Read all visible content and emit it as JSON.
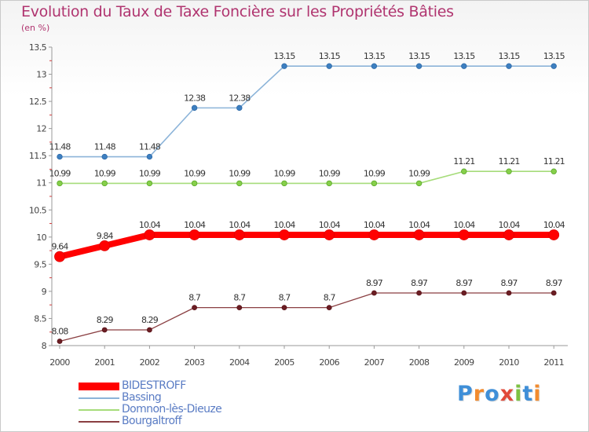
{
  "header": {
    "title": "Evolution du Taux de Taxe Foncière sur les Propriétés Bâties",
    "subtitle": "(en %)"
  },
  "chart_data": {
    "type": "line",
    "title": "Evolution du Taux de Taxe Foncière sur les Propriétés Bâties",
    "subtitle": "(en %)",
    "xlabel": "",
    "ylabel": "",
    "ylim": [
      8,
      13.5
    ],
    "yticks": [
      "8",
      "8.5",
      "9",
      "9.5",
      "10",
      "10.5",
      "11",
      "11.5",
      "12",
      "12.5",
      "13",
      "13.5"
    ],
    "x": [
      "2000",
      "2001",
      "2002",
      "2003",
      "2004",
      "2005",
      "2006",
      "2007",
      "2008",
      "2009",
      "2010",
      "2011"
    ],
    "grid": false,
    "legend_position": "bottom-left",
    "series": [
      {
        "name": "BIDESTROFF",
        "color": "#ff0000",
        "values": [
          9.64,
          9.84,
          10.04,
          10.04,
          10.04,
          10.04,
          10.04,
          10.04,
          10.04,
          10.04,
          10.04,
          10.04
        ],
        "labels": [
          "9.64",
          "9.84",
          "10.04",
          "10.04",
          "10.04",
          "10.04",
          "10.04",
          "10.04",
          "10.04",
          "10.04",
          "10.04",
          "10.04"
        ]
      },
      {
        "name": "Bassing",
        "color": "#8cb4d9",
        "values": [
          11.48,
          11.48,
          11.48,
          12.38,
          12.38,
          13.15,
          13.15,
          13.15,
          13.15,
          13.15,
          13.15,
          13.15
        ],
        "labels": [
          "11.48",
          "11.48",
          "11.48",
          "12.38",
          "12.38",
          "13.15",
          "13.15",
          "13.15",
          "13.15",
          "13.15",
          "13.15",
          "13.15"
        ]
      },
      {
        "name": "Domnon-lès-Dieuze",
        "color": "#a6dc7a",
        "values": [
          10.99,
          10.99,
          10.99,
          10.99,
          10.99,
          10.99,
          10.99,
          10.99,
          10.99,
          11.21,
          11.21,
          11.21
        ],
        "labels": [
          "10.99",
          "10.99",
          "10.99",
          "10.99",
          "10.99",
          "10.99",
          "10.99",
          "10.99",
          "10.99",
          "11.21",
          "11.21",
          "11.21"
        ]
      },
      {
        "name": "Bourgaltroff",
        "color": "#8a3f42",
        "values": [
          8.08,
          8.29,
          8.29,
          8.7,
          8.7,
          8.7,
          8.7,
          8.97,
          8.97,
          8.97,
          8.97,
          8.97
        ],
        "labels": [
          "8.08",
          "8.29",
          "8.29",
          "8.7",
          "8.7",
          "8.7",
          "8.7",
          "8.97",
          "8.97",
          "8.97",
          "8.97",
          "8.97"
        ]
      }
    ]
  },
  "logo": {
    "text": "Proxiti",
    "letters": [
      "P",
      "r",
      "o",
      "x",
      "i",
      "t",
      "i"
    ],
    "colors": [
      "#3f8fd8",
      "#f28b2e",
      "#3f8fd8",
      "#e14a3a",
      "#7cc242",
      "#3f8fd8",
      "#f28b2e"
    ]
  }
}
